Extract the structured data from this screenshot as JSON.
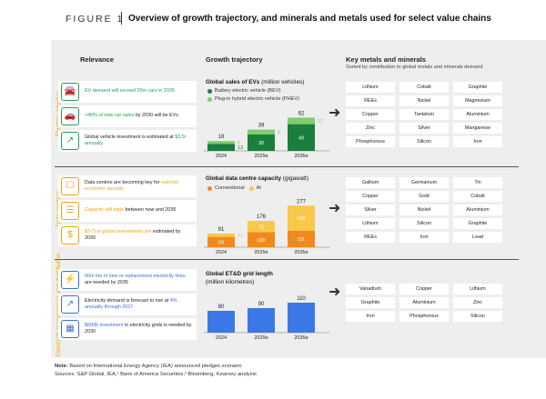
{
  "header": {
    "figure_label": "FIGURE 1",
    "title": "Overview of growth trajectory, and minerals and metals used for select value chains"
  },
  "columns": {
    "relevance": "Relevance",
    "growth": "Growth trajectory",
    "metals": "Key metals and minerals",
    "metals_sub": "Sorted by contribution to global metals and minerals demand"
  },
  "colors": {
    "ev_dark": "#1a7f3c",
    "ev_light": "#7ccf6e",
    "dc_light": "#f9c84a",
    "dc_dark": "#f08a1c",
    "grid": "#3b78e7",
    "accent_orange": "#f0a500"
  },
  "sections": {
    "ev": {
      "label": "Electric vehicles",
      "items": [
        {
          "icon": "car-icon",
          "pre": "",
          "hl": "EV demand will exceed 20m cars in 2025",
          "post": ""
        },
        {
          "icon": "new-car-icon",
          "pre": "",
          "hl": ">40% of new car sales",
          "post": " by 2030 will be EVs"
        },
        {
          "icon": "investment-chart-icon",
          "pre": "Global vehicle investment is estimated at ",
          "hl": "$3.5t annually",
          "post": ""
        }
      ],
      "chart_title": "Global sales of EVs",
      "chart_unit": " (million vehicles)",
      "legend": [
        "Battery electric vehicle (BEV)",
        "Plug-in hybrid electric vehicle (PHEV)"
      ],
      "metals": [
        "Lithium",
        "Cobalt",
        "Graphite",
        "REEs",
        "Nickel",
        "Magnesium",
        "Copper",
        "Tantalum",
        "Aluminium",
        "Zinc",
        "Silver",
        "Manganese",
        "Phosphorous",
        "Silicon",
        "Iron"
      ]
    },
    "dc": {
      "label": "Data centres",
      "items": [
        {
          "icon": "shield-icon",
          "pre": "Data centres are becoming key for ",
          "hl": "national economic security",
          "post": ""
        },
        {
          "icon": "capacity-icon",
          "pre": "",
          "hl": "Capacity will triple",
          "post": " between now and 2035"
        },
        {
          "icon": "dollar-icon",
          "pre": "",
          "hl": "$3-7t in global investments are",
          "post": " estimated by 2030"
        }
      ],
      "chart_title": "Global data centre capacity",
      "chart_unit": " (gigawatt)",
      "legend": [
        "Conventional",
        "AI"
      ],
      "metals": [
        "Gallium",
        "Germanium",
        "Tin",
        "Copper",
        "Gold",
        "Cobalt",
        "Silver",
        "Nickel",
        "Aluminium",
        "Lithium",
        "Silicon",
        "Graphite",
        "REEs",
        "Iron",
        "Lead"
      ]
    },
    "grid": {
      "label": "Electricity transmission and distribution",
      "items": [
        {
          "icon": "power-line-icon",
          "pre": "",
          "hl": "60m km of new or replacement electricity lines",
          "post": " are needed by 2035"
        },
        {
          "icon": "demand-chart-icon",
          "pre": "Electricity demand is forecast to rise at ",
          "hl": "4% annually through 2027",
          "post": ""
        },
        {
          "icon": "money-grid-icon",
          "pre": "",
          "hl": "$600b investment",
          "post": " in electricity grids is needed by 2030"
        }
      ],
      "chart_title": "Global ET&D grid length",
      "chart_unit": "(million kilometres)",
      "metals": [
        "Vanadium",
        "Copper",
        "Lithium",
        "Graphite",
        "Aluminium",
        "Zinc",
        "Iron",
        "Phosphorous",
        "Silicon"
      ]
    }
  },
  "chart_data": [
    {
      "type": "bar",
      "title": "Global sales of EVs (million vehicles)",
      "categories": [
        "2024",
        "2029e",
        "2035e"
      ],
      "series": [
        {
          "name": "Battery electric vehicle (BEV)",
          "values": [
            13,
            30,
            49
          ]
        },
        {
          "name": "Plug-in hybrid electric vehicle (PHEV)",
          "values": [
            5,
            9,
            12
          ]
        }
      ],
      "totals": [
        18,
        39,
        62
      ]
    },
    {
      "type": "bar",
      "title": "Global data centre capacity (gigawatt)",
      "categories": [
        "2024",
        "2029e",
        "2035e"
      ],
      "series": [
        {
          "name": "Conventional",
          "values": [
            69,
            100,
            111
          ]
        },
        {
          "name": "AI",
          "values": [
            22,
            75,
            166
          ]
        }
      ],
      "totals": [
        91,
        176,
        277
      ]
    },
    {
      "type": "bar",
      "title": "Global ET&D grid length (million kilometres)",
      "categories": [
        "2024",
        "2029e",
        "2035e"
      ],
      "values": [
        80,
        90,
        110
      ]
    }
  ],
  "footer": {
    "note_label": "Note:",
    "note": " Based on International Energy Agency (IEA) announced pledges scenario",
    "sources": "Sources: S&P Global, IEA,¹ Bank of America Securities,² Bloomberg, Kearney analysis"
  }
}
